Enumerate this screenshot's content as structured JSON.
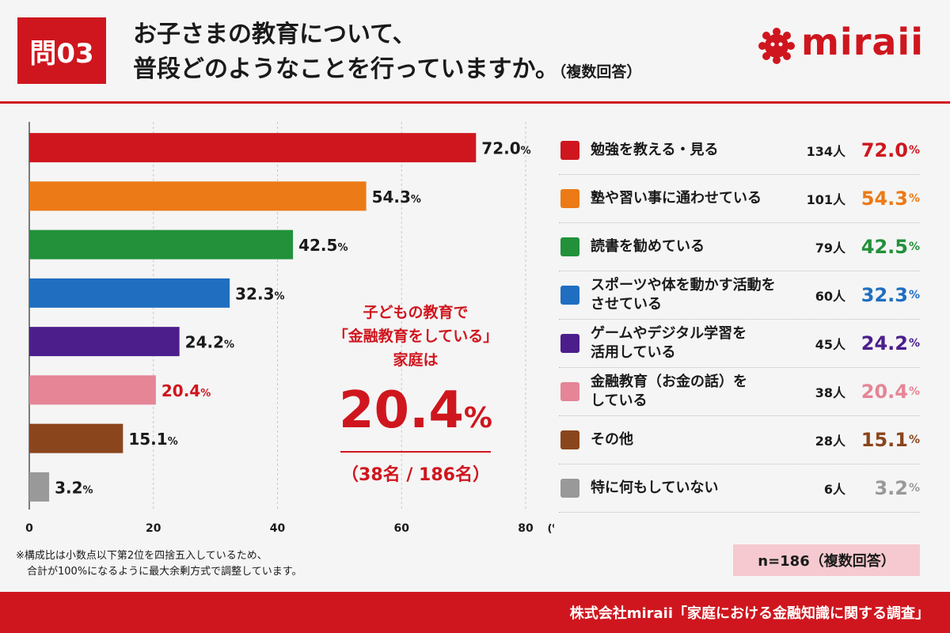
{
  "header": {
    "badge": "問03",
    "title_line1": "お子さまの教育について、",
    "title_line2": "普段どのようなことを行っていますか。",
    "title_note": "（複数回答）",
    "logo_text": "miraii"
  },
  "callout": {
    "line1": "子どもの教育で",
    "line2": "「金融教育をしている」",
    "line3": "家庭は",
    "value": "20.4",
    "unit": "%",
    "ratio": "（38名 / 186名）"
  },
  "sample_note": "n=186（複数回答）",
  "footnote_line1": "※構成比は小数点以下第2位を四捨五入しているため、",
  "footnote_line2": "合計が100%になるように最大余剰方式で調整しています。",
  "footer_text": "株式会社miraii「家庭における金融知識に関する調査」",
  "chart_data": {
    "type": "bar",
    "orientation": "horizontal",
    "categories": [
      "勉強を教える・見る",
      "塾や習い事に通わせている",
      "読書を勧めている",
      "スポーツや体を動かす活動をさせている",
      "ゲームやデジタル学習を活用している",
      "金融教育（お金の話）をしている",
      "その他",
      "特に何もしていない"
    ],
    "legend_labels": [
      [
        "勉強を教える・見る"
      ],
      [
        "塾や習い事に通わせている"
      ],
      [
        "読書を勧めている"
      ],
      [
        "スポーツや体を動かす活動を",
        "させている"
      ],
      [
        "ゲームやデジタル学習を",
        "活用している"
      ],
      [
        "金融教育（お金の話）を",
        "している"
      ],
      [
        "その他"
      ],
      [
        "特に何もしていない"
      ]
    ],
    "values": [
      72.0,
      54.3,
      42.5,
      32.3,
      24.2,
      20.4,
      15.1,
      3.2
    ],
    "value_labels": [
      "72.0",
      "54.3",
      "42.5",
      "32.3",
      "24.2",
      "20.4",
      "15.1",
      "3.2"
    ],
    "percent_sign": "%",
    "counts": [
      "134人",
      "101人",
      "79人",
      "60人",
      "45人",
      "38人",
      "28人",
      "6人"
    ],
    "colors": [
      "#cf161e",
      "#ec7a16",
      "#22913a",
      "#1f6ec0",
      "#4b1e8c",
      "#e58596",
      "#8b451c",
      "#999999"
    ],
    "highlight_index": 5,
    "xlim": [
      0,
      80
    ],
    "xticks": [
      "0",
      "20",
      "40",
      "60",
      "80"
    ],
    "xunit": "(%)",
    "grid": true,
    "legend_position": "right"
  }
}
